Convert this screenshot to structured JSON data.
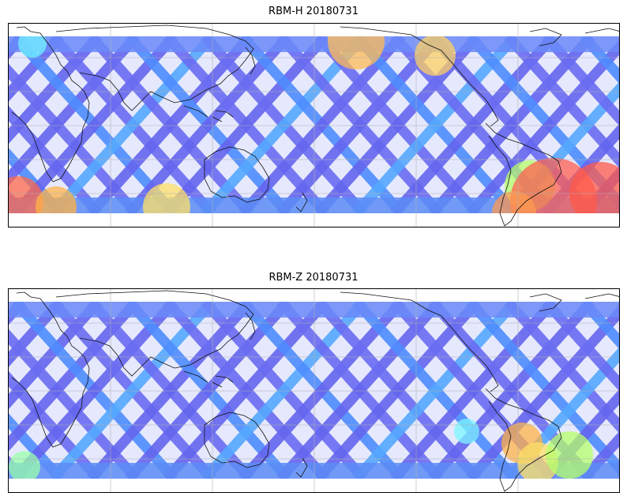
{
  "panels": [
    {
      "title": "RBM-H 20180731",
      "colormap": "jet",
      "hot_regions": [
        "south-atlantic-south-america",
        "south-indian-ocean-west",
        "north-pacific-band"
      ]
    },
    {
      "title": "RBM-Z 20180731",
      "colormap": "jet",
      "hot_regions": [
        "south-america-east-coast"
      ]
    }
  ],
  "map": {
    "projection": "equirectangular",
    "central_longitude": 120,
    "gridlines": true,
    "coastlines": true
  }
}
